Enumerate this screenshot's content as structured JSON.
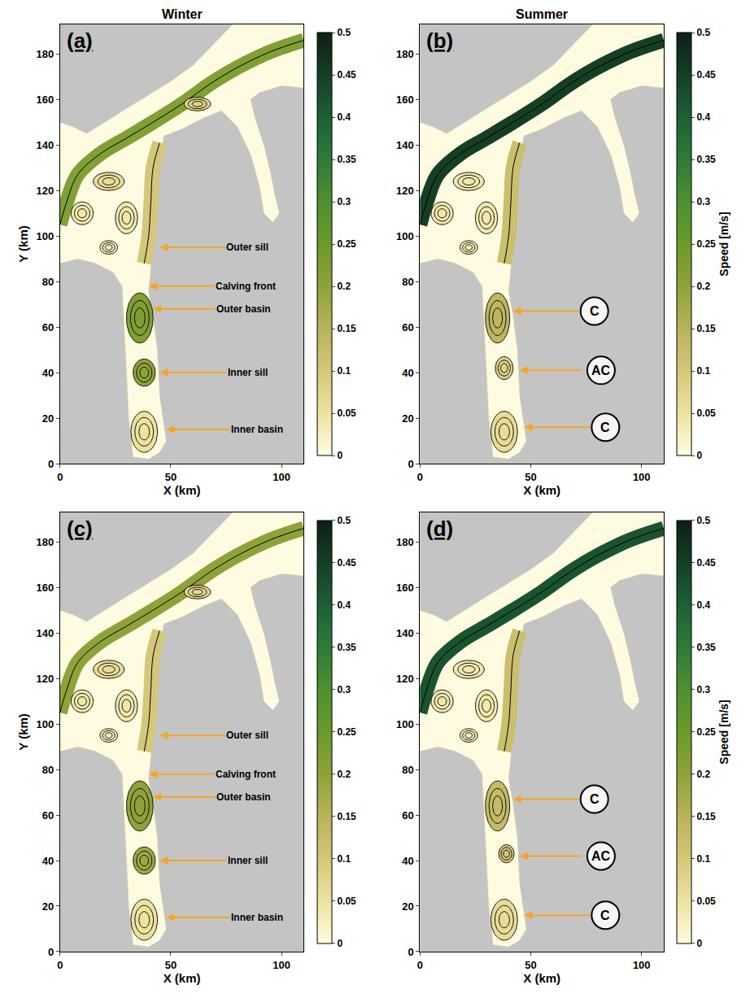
{
  "chart_data": [
    {
      "type": "streamline_map",
      "panel": "(a)",
      "title": "Winter",
      "xlabel": "X (km)",
      "ylabel": "Y (km)",
      "xlim": [
        0,
        110
      ],
      "ylim": [
        0,
        193
      ],
      "xticks": [
        0,
        50,
        100
      ],
      "yticks": [
        0,
        20,
        40,
        60,
        80,
        100,
        120,
        140,
        160,
        180
      ],
      "colorbar": {
        "range": [
          0,
          0.5
        ],
        "ticks": [
          0,
          0.05,
          0.1,
          0.15,
          0.2,
          0.25,
          0.3,
          0.35,
          0.4,
          0.45,
          0.5
        ]
      },
      "outline": {
        "x": [
          0,
          6,
          12,
          20,
          30,
          40,
          50,
          60,
          68,
          75,
          78,
          110,
          110,
          100,
          90,
          86,
          88,
          92,
          95,
          97,
          99,
          96,
          92,
          90,
          86,
          80,
          73,
          65,
          55,
          47,
          45,
          44,
          43,
          42,
          41,
          40,
          42,
          44,
          45,
          48,
          45,
          40,
          33,
          31,
          30,
          29,
          28,
          24,
          16,
          8,
          0
        ],
        "y": [
          150,
          148,
          145,
          150,
          156,
          162,
          168,
          175,
          183,
          190,
          193,
          193,
          165,
          166,
          163,
          160,
          152,
          140,
          128,
          118,
          110,
          106,
          110,
          122,
          136,
          148,
          155,
          152,
          147,
          144,
          135,
          120,
          105,
          95,
          85,
          76,
          65,
          50,
          30,
          10,
          5,
          2,
          3,
          20,
          40,
          60,
          78,
          84,
          88,
          90,
          88
        ]
      },
      "jets": [
        {
          "x": [
            110,
            95,
            80,
            68,
            55,
            42,
            30,
            18,
            8,
            3,
            0
          ],
          "y": [
            186,
            181,
            174,
            167,
            158,
            150,
            143,
            136,
            127,
            115,
            105
          ],
          "speed": 0.22
        },
        {
          "x": [
            45,
            42,
            41,
            40,
            38
          ],
          "y": [
            141,
            130,
            115,
            100,
            88
          ],
          "speed": 0.1
        }
      ],
      "eddies": [
        {
          "x": 36,
          "y": 64,
          "rx": 6,
          "ry": 11,
          "speed": 0.22
        },
        {
          "x": 38,
          "y": 40,
          "rx": 5,
          "ry": 6,
          "speed": 0.2
        },
        {
          "x": 38,
          "y": 14,
          "rx": 6,
          "ry": 9,
          "speed": 0.05
        },
        {
          "x": 22,
          "y": 124,
          "rx": 7,
          "ry": 4,
          "speed": 0.06
        },
        {
          "x": 62,
          "y": 158,
          "rx": 6,
          "ry": 3,
          "speed": 0.08
        },
        {
          "x": 10,
          "y": 110,
          "rx": 5,
          "ry": 5,
          "speed": 0.04
        },
        {
          "x": 30,
          "y": 108,
          "rx": 5,
          "ry": 7,
          "speed": 0.04
        },
        {
          "x": 22,
          "y": 95,
          "rx": 4,
          "ry": 3,
          "speed": 0.03
        }
      ],
      "annotations": [
        {
          "text": "Outer sill",
          "x": 45,
          "y": 95
        },
        {
          "text": "Calving front",
          "x": 40,
          "y": 78
        },
        {
          "text": "Outer basin",
          "x": 42,
          "y": 68
        },
        {
          "text": "Inner sill",
          "x": 45,
          "y": 40
        },
        {
          "text": "Inner basin",
          "x": 48,
          "y": 15
        }
      ]
    },
    {
      "type": "streamline_map",
      "panel": "(b)",
      "title": "Summer",
      "xlabel": "X (km)",
      "xlim": [
        0,
        110
      ],
      "ylim": [
        0,
        193
      ],
      "xticks": [
        0,
        50,
        100
      ],
      "yticks": [
        0,
        20,
        40,
        60,
        80,
        100,
        120,
        140,
        160,
        180
      ],
      "colorbar": {
        "range": [
          0,
          0.5
        ],
        "ticks": [
          0,
          0.05,
          0.1,
          0.15,
          0.2,
          0.25,
          0.3,
          0.35,
          0.4,
          0.45,
          0.5
        ],
        "title": "Speed [m/s]"
      },
      "outline": {
        "x": [
          0,
          6,
          12,
          20,
          30,
          40,
          50,
          60,
          68,
          75,
          78,
          110,
          110,
          100,
          90,
          86,
          88,
          92,
          95,
          97,
          99,
          96,
          92,
          90,
          86,
          80,
          73,
          65,
          55,
          47,
          45,
          44,
          43,
          42,
          41,
          40,
          42,
          44,
          45,
          48,
          45,
          40,
          33,
          31,
          30,
          29,
          28,
          24,
          16,
          8,
          0
        ],
        "y": [
          150,
          148,
          145,
          150,
          156,
          162,
          168,
          175,
          183,
          190,
          193,
          193,
          165,
          166,
          163,
          160,
          152,
          140,
          128,
          118,
          110,
          106,
          110,
          122,
          136,
          148,
          155,
          152,
          147,
          144,
          135,
          120,
          105,
          95,
          85,
          76,
          65,
          50,
          30,
          10,
          5,
          2,
          3,
          20,
          40,
          60,
          78,
          84,
          88,
          90,
          88
        ]
      },
      "jets": [
        {
          "x": [
            110,
            95,
            80,
            68,
            55,
            42,
            30,
            18,
            8,
            3,
            0
          ],
          "y": [
            186,
            181,
            174,
            167,
            158,
            150,
            143,
            136,
            127,
            115,
            105
          ],
          "speed": 0.45
        },
        {
          "x": [
            45,
            42,
            41,
            40,
            38
          ],
          "y": [
            141,
            130,
            115,
            100,
            88
          ],
          "speed": 0.12
        }
      ],
      "eddies": [
        {
          "x": 35,
          "y": 64,
          "rx": 5.5,
          "ry": 11,
          "speed": 0.14
        },
        {
          "x": 38,
          "y": 42,
          "rx": 4,
          "ry": 5,
          "speed": 0.08
        },
        {
          "x": 38,
          "y": 14,
          "rx": 6,
          "ry": 9,
          "speed": 0.06
        },
        {
          "x": 22,
          "y": 124,
          "rx": 7,
          "ry": 4,
          "speed": 0.04
        },
        {
          "x": 10,
          "y": 110,
          "rx": 5,
          "ry": 5,
          "speed": 0.04
        },
        {
          "x": 30,
          "y": 108,
          "rx": 5,
          "ry": 7,
          "speed": 0.04
        },
        {
          "x": 22,
          "y": 95,
          "rx": 4,
          "ry": 3,
          "speed": 0.03
        }
      ],
      "annotations": [
        {
          "text": "C",
          "x": 42,
          "y": 67
        },
        {
          "text": "AC",
          "x": 45,
          "y": 41
        },
        {
          "text": "C",
          "x": 47,
          "y": 16
        }
      ]
    },
    {
      "type": "streamline_map",
      "panel": "(c)",
      "xlabel": "X (km)",
      "ylabel": "Y (km)",
      "xlim": [
        0,
        110
      ],
      "ylim": [
        0,
        193
      ],
      "xticks": [
        0,
        50,
        100
      ],
      "yticks": [
        0,
        20,
        40,
        60,
        80,
        100,
        120,
        140,
        160,
        180
      ],
      "colorbar": {
        "range": [
          0,
          0.5
        ],
        "ticks": [
          0,
          0.05,
          0.1,
          0.15,
          0.2,
          0.25,
          0.3,
          0.35,
          0.4,
          0.45,
          0.5
        ]
      },
      "outline": {
        "x": [
          0,
          6,
          12,
          20,
          30,
          40,
          50,
          60,
          68,
          75,
          78,
          110,
          110,
          100,
          90,
          86,
          88,
          92,
          95,
          97,
          99,
          96,
          92,
          90,
          86,
          80,
          73,
          65,
          55,
          47,
          45,
          44,
          43,
          42,
          41,
          40,
          42,
          44,
          45,
          48,
          45,
          40,
          33,
          31,
          30,
          29,
          28,
          24,
          16,
          8,
          0
        ],
        "y": [
          150,
          148,
          145,
          150,
          156,
          162,
          168,
          175,
          183,
          190,
          193,
          193,
          165,
          166,
          163,
          160,
          152,
          140,
          128,
          118,
          110,
          106,
          110,
          122,
          136,
          148,
          155,
          152,
          147,
          144,
          135,
          120,
          105,
          95,
          85,
          76,
          65,
          50,
          30,
          10,
          5,
          2,
          3,
          20,
          40,
          60,
          78,
          84,
          88,
          90,
          88
        ]
      },
      "jets": [
        {
          "x": [
            110,
            95,
            80,
            68,
            55,
            42,
            30,
            18,
            8,
            3,
            0
          ],
          "y": [
            186,
            181,
            174,
            167,
            158,
            150,
            143,
            136,
            127,
            115,
            105
          ],
          "speed": 0.2
        },
        {
          "x": [
            45,
            42,
            41,
            40,
            38
          ],
          "y": [
            141,
            130,
            115,
            100,
            88
          ],
          "speed": 0.1
        }
      ],
      "eddies": [
        {
          "x": 36,
          "y": 64,
          "rx": 6,
          "ry": 11,
          "speed": 0.2
        },
        {
          "x": 38,
          "y": 40,
          "rx": 5,
          "ry": 6,
          "speed": 0.18
        },
        {
          "x": 38,
          "y": 14,
          "rx": 6,
          "ry": 9,
          "speed": 0.05
        },
        {
          "x": 22,
          "y": 124,
          "rx": 7,
          "ry": 4,
          "speed": 0.06
        },
        {
          "x": 62,
          "y": 158,
          "rx": 6,
          "ry": 3,
          "speed": 0.07
        },
        {
          "x": 10,
          "y": 110,
          "rx": 5,
          "ry": 5,
          "speed": 0.04
        },
        {
          "x": 30,
          "y": 108,
          "rx": 5,
          "ry": 7,
          "speed": 0.04
        },
        {
          "x": 22,
          "y": 95,
          "rx": 4,
          "ry": 3,
          "speed": 0.03
        }
      ],
      "annotations": [
        {
          "text": "Outer sill",
          "x": 45,
          "y": 95
        },
        {
          "text": "Calving front",
          "x": 40,
          "y": 78
        },
        {
          "text": "Outer basin",
          "x": 42,
          "y": 68
        },
        {
          "text": "Inner sill",
          "x": 45,
          "y": 40
        },
        {
          "text": "Inner basin",
          "x": 48,
          "y": 15
        }
      ]
    },
    {
      "type": "streamline_map",
      "panel": "(d)",
      "xlabel": "X (km)",
      "xlim": [
        0,
        110
      ],
      "ylim": [
        0,
        193
      ],
      "xticks": [
        0,
        50,
        100
      ],
      "yticks": [
        0,
        20,
        40,
        60,
        80,
        100,
        120,
        140,
        160,
        180
      ],
      "colorbar": {
        "range": [
          0,
          0.5
        ],
        "ticks": [
          0,
          0.05,
          0.1,
          0.15,
          0.2,
          0.25,
          0.3,
          0.35,
          0.4,
          0.45,
          0.5
        ],
        "title": "Speed [m/s]"
      },
      "outline": {
        "x": [
          0,
          6,
          12,
          20,
          30,
          40,
          50,
          60,
          68,
          75,
          78,
          110,
          110,
          100,
          90,
          86,
          88,
          92,
          95,
          97,
          99,
          96,
          92,
          90,
          86,
          80,
          73,
          65,
          55,
          47,
          45,
          44,
          43,
          42,
          41,
          40,
          42,
          44,
          45,
          48,
          45,
          40,
          33,
          31,
          30,
          29,
          28,
          24,
          16,
          8,
          0
        ],
        "y": [
          150,
          148,
          145,
          150,
          156,
          162,
          168,
          175,
          183,
          190,
          193,
          193,
          165,
          166,
          163,
          160,
          152,
          140,
          128,
          118,
          110,
          106,
          110,
          122,
          136,
          148,
          155,
          152,
          147,
          144,
          135,
          120,
          105,
          95,
          85,
          76,
          65,
          50,
          30,
          10,
          5,
          2,
          3,
          20,
          40,
          60,
          78,
          84,
          88,
          90,
          88
        ]
      },
      "jets": [
        {
          "x": [
            110,
            95,
            80,
            68,
            55,
            42,
            30,
            18,
            8,
            3,
            0
          ],
          "y": [
            186,
            181,
            174,
            167,
            158,
            150,
            143,
            136,
            127,
            115,
            105
          ],
          "speed": 0.42
        },
        {
          "x": [
            45,
            42,
            41,
            40,
            38
          ],
          "y": [
            141,
            130,
            115,
            100,
            88
          ],
          "speed": 0.12
        }
      ],
      "eddies": [
        {
          "x": 35,
          "y": 64,
          "rx": 5.5,
          "ry": 11,
          "speed": 0.13
        },
        {
          "x": 39,
          "y": 43,
          "rx": 3.5,
          "ry": 4,
          "speed": 0.1
        },
        {
          "x": 38,
          "y": 14,
          "rx": 6,
          "ry": 9,
          "speed": 0.06
        },
        {
          "x": 22,
          "y": 124,
          "rx": 7,
          "ry": 4,
          "speed": 0.04
        },
        {
          "x": 10,
          "y": 110,
          "rx": 5,
          "ry": 5,
          "speed": 0.04
        },
        {
          "x": 30,
          "y": 108,
          "rx": 5,
          "ry": 7,
          "speed": 0.04
        },
        {
          "x": 22,
          "y": 95,
          "rx": 4,
          "ry": 3,
          "speed": 0.03
        }
      ],
      "annotations": [
        {
          "text": "C",
          "x": 42,
          "y": 67
        },
        {
          "text": "AC",
          "x": 45,
          "y": 42
        },
        {
          "text": "C",
          "x": 47,
          "y": 16
        }
      ]
    }
  ]
}
